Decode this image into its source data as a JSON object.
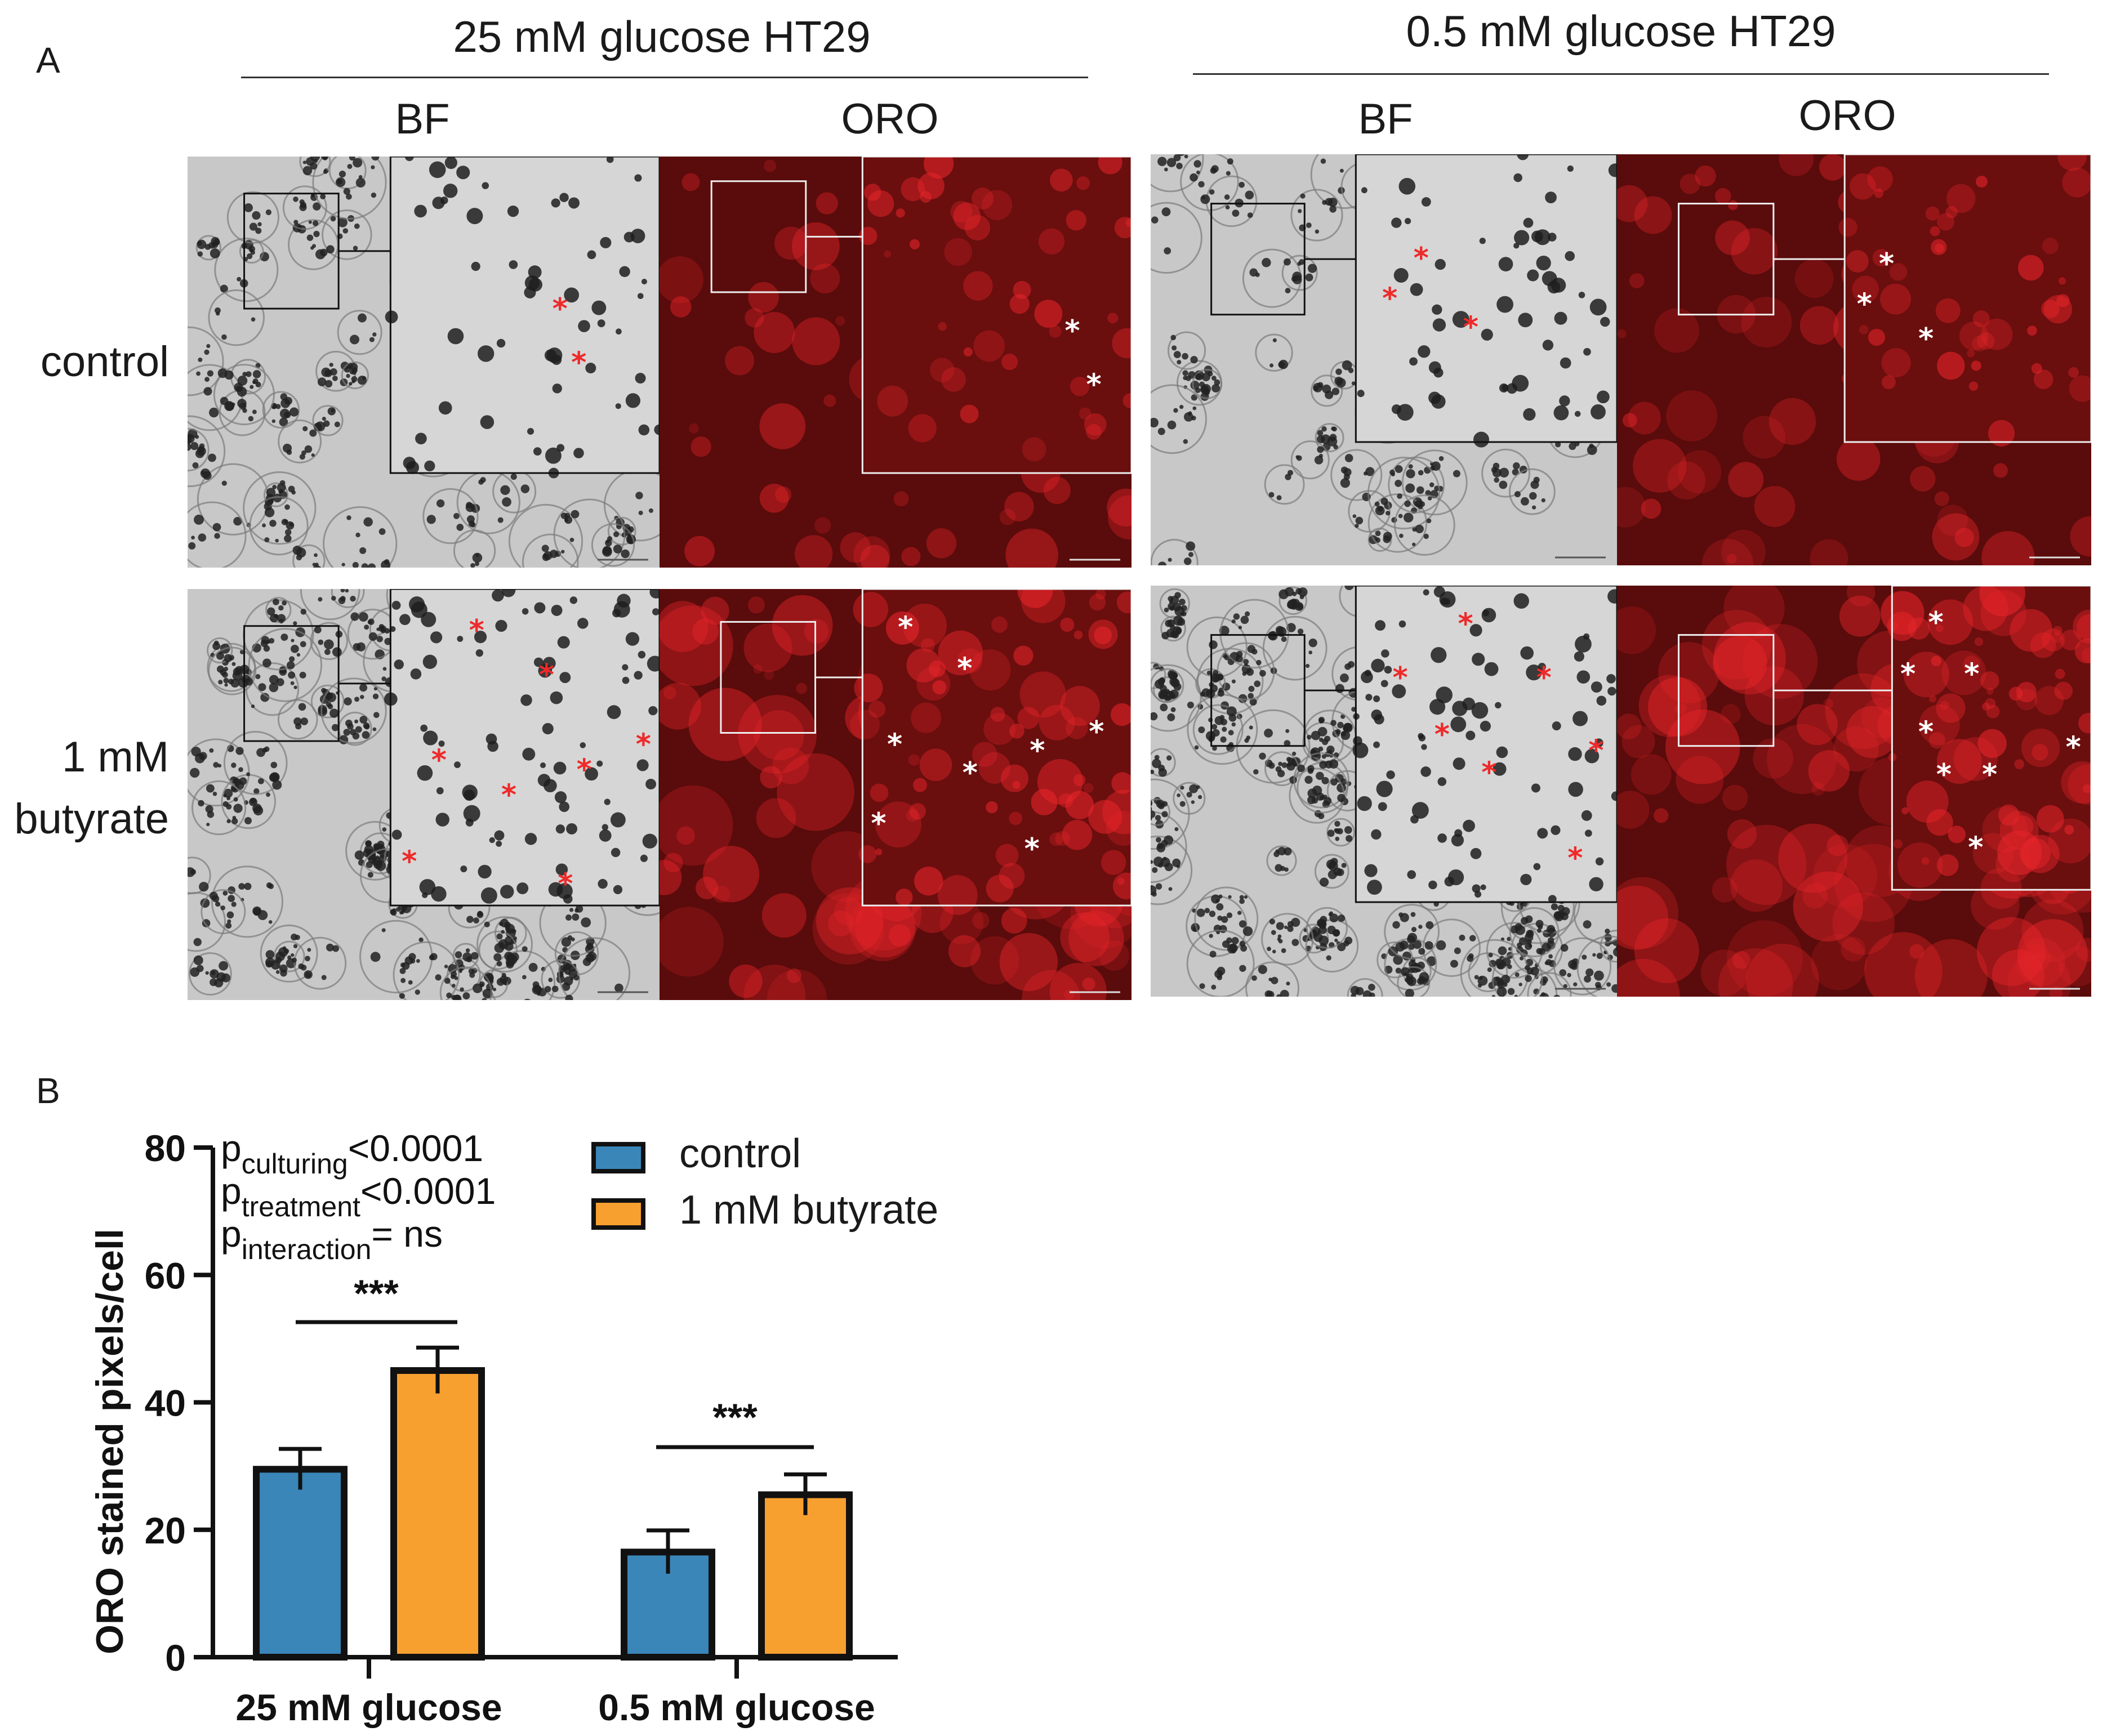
{
  "panel_a": {
    "label": "A",
    "groups": [
      {
        "title": "25 mM glucose HT29",
        "columns": [
          "BF",
          "ORO"
        ]
      },
      {
        "title": "0.5 mM glucose HT29",
        "columns": [
          "BF",
          "ORO"
        ]
      }
    ],
    "rows": [
      {
        "label_line1": "control",
        "label_line2": ""
      },
      {
        "label_line1": "1 mM",
        "label_line2": "butyrate"
      }
    ],
    "lipid_marker": "*",
    "marker_colors": {
      "bf": "#ee2a2a",
      "oro": "#ffffff"
    },
    "image_colors": {
      "bf_bg": "#c8c8c8",
      "oro_bg": "#5a0b0b",
      "oro_signal": "#e8252a"
    }
  },
  "panel_b": {
    "label": "B",
    "stats": [
      {
        "p": "p",
        "sub": "culturing",
        "rest": "<0.0001"
      },
      {
        "p": "p",
        "sub": "treatment",
        "rest": "<0.0001"
      },
      {
        "p": "p",
        "sub": "interaction",
        "rest": "= ns"
      }
    ],
    "significance": [
      "***",
      "***"
    ]
  },
  "chart_data": {
    "type": "bar",
    "categories": [
      "25 mM glucose",
      "0.5 mM glucose"
    ],
    "series": [
      {
        "name": "control",
        "color": "#3a86b8",
        "values": [
          29.5,
          16.5
        ],
        "errors": [
          3.2,
          3.4
        ]
      },
      {
        "name": "1 mM butyrate",
        "color": "#f7a030",
        "values": [
          45,
          25.5
        ],
        "errors": [
          3.6,
          3.2
        ]
      }
    ],
    "title": "",
    "xlabel": "",
    "ylabel": "ORO stained pixels/cell",
    "ylim": [
      0,
      80
    ],
    "yticks": [
      "0",
      "20",
      "40",
      "60",
      "80"
    ],
    "legend_position": "top-center"
  }
}
